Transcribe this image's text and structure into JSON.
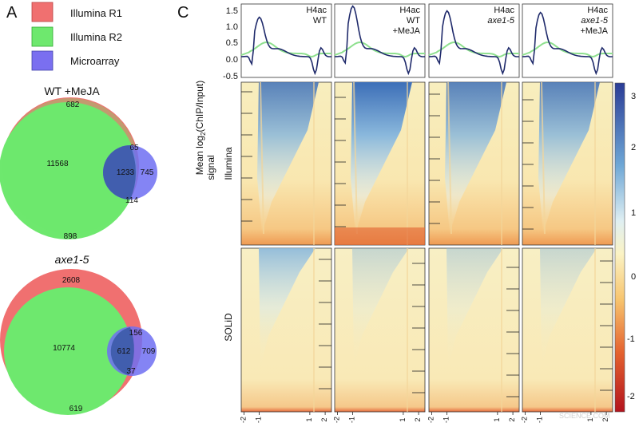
{
  "panel_a": {
    "label": "A",
    "legend": [
      {
        "label": "Illumina R1",
        "color": "#f07070"
      },
      {
        "label": "Illumina R2",
        "color": "#6ee86e"
      },
      {
        "label": "Microarray",
        "color": "#7a6ff0"
      }
    ],
    "venn1": {
      "title": "WT +MeJA",
      "values": {
        "r1_only": "682",
        "shared_r1_r2": "11568",
        "r1_micro": "65",
        "all_three": "1233",
        "micro_only": "745",
        "r2_micro": "114",
        "r2_only": "898"
      }
    },
    "venn2": {
      "title": "axe1-5",
      "values": {
        "r1_only": "2608",
        "shared_r1_r2": "10774",
        "r1_micro": "156",
        "all_three": "612",
        "micro_only": "709",
        "r2_micro": "37",
        "r2_only": "619"
      }
    }
  },
  "panel_c": {
    "label": "C",
    "y_axis_label_line1": "Mean log",
    "y_axis_label_sub": "2",
    "y_axis_label_rest": "(ChIP/Input)",
    "y_axis_label_line2": "signal",
    "row_labels": [
      "Illumina",
      "SOLiD"
    ],
    "profile_ticks": [
      "1.5",
      "1.0",
      "0.5",
      "0.0",
      "-0.5"
    ],
    "colorbar_ticks": [
      "3",
      "2",
      "1",
      "0",
      "-1",
      "-2"
    ],
    "x_tick_labels": [
      "-2",
      "-1",
      "1",
      "2"
    ],
    "columns": [
      {
        "line1": "H4ac",
        "line2": "WT",
        "line3": ""
      },
      {
        "line1": "H4ac",
        "line2": "WT",
        "line3": "+MeJA"
      },
      {
        "line1": "H4ac",
        "line2": "axe1-5",
        "line3": ""
      },
      {
        "line1": "H4ac",
        "line2": "axe1-5",
        "line3": "+MeJA"
      }
    ],
    "colors": {
      "profile_illumina": "#1f2a6b",
      "profile_solid": "#8fe08f",
      "heat_high": "#2b4f9e",
      "heat_low": "#c8241e"
    }
  },
  "watermark": "SCIENCE.COM"
}
